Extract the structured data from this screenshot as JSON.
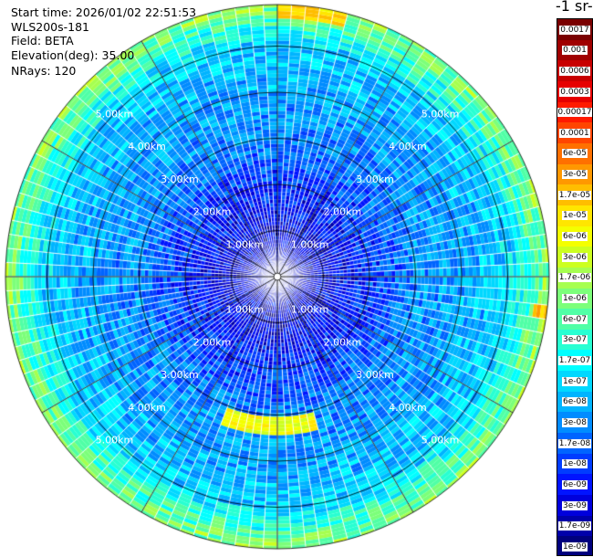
{
  "info": {
    "start_time": "Start time: 2026/01/02 22:51:53",
    "instrument": "WLS200s-181",
    "field": "Field: BETA",
    "elevation": "Elevation(deg): 35.00",
    "nrays": "NRays: 120"
  },
  "colorbar": {
    "unit_label": "-1 sr-",
    "levels": [
      "0.0017",
      "0.001",
      "0.0006",
      "0.0003",
      "0.00017",
      "0.0001",
      "6e-05",
      "3e-05",
      "1.7e-05",
      "1e-05",
      "6e-06",
      "3e-06",
      "1.7e-06",
      "1e-06",
      "6e-07",
      "3e-07",
      "1.7e-07",
      "1e-07",
      "6e-08",
      "3e-08",
      "1.7e-08",
      "1e-08",
      "6e-09",
      "3e-09",
      "1.7e-09",
      "1e-09"
    ],
    "colors": [
      "#7a0000",
      "#a00000",
      "#c80000",
      "#e60000",
      "#ff1a00",
      "#ff4500",
      "#ff7000",
      "#ff9800",
      "#ffbe00",
      "#ffe600",
      "#f4ff00",
      "#ccff20",
      "#a6ff50",
      "#7cff7a",
      "#50ffa6",
      "#28ffd2",
      "#00ffff",
      "#00d8ff",
      "#00b4ff",
      "#008cff",
      "#0064ff",
      "#003cff",
      "#0014ff",
      "#0000dc",
      "#0000aa",
      "#00007d"
    ]
  },
  "chart_data": {
    "type": "heatmap",
    "projection": "polar PPI",
    "title": "",
    "field": "BETA",
    "elevation_deg": 35.0,
    "n_rays": 120,
    "range_rings_km": [
      1,
      2,
      3,
      4,
      5
    ],
    "ring_labels": [
      "1.00km",
      "2.00km",
      "3.00km",
      "4.00km",
      "5.00km"
    ],
    "max_range_km": 5.9,
    "azimuth_lines_deg": [
      0,
      30,
      60,
      90,
      120,
      150,
      180,
      210,
      240,
      270,
      300,
      330
    ],
    "log10_beta_by_range_km": {
      "0.0": -8.5,
      "1.0": -8.4,
      "2.0": -8.0,
      "3.0": -7.5,
      "4.0": -7.3,
      "5.0": -7.0,
      "5.8": -6.0
    },
    "features": [
      {
        "description_value": "enhanced backscatter band",
        "azimuth_deg": [
          165,
          200
        ],
        "range_km": [
          3.0,
          3.4
        ],
        "log10_beta": -5.3
      },
      {
        "description_value": "near-edge high values",
        "azimuth_deg": [
          95,
          100
        ],
        "range_km": [
          5.6,
          5.9
        ],
        "log10_beta": -4.8
      },
      {
        "description_value": "near-edge high values",
        "azimuth_deg": [
          0,
          15
        ],
        "range_km": [
          5.6,
          5.9
        ],
        "log10_beta": -5.0
      }
    ]
  }
}
